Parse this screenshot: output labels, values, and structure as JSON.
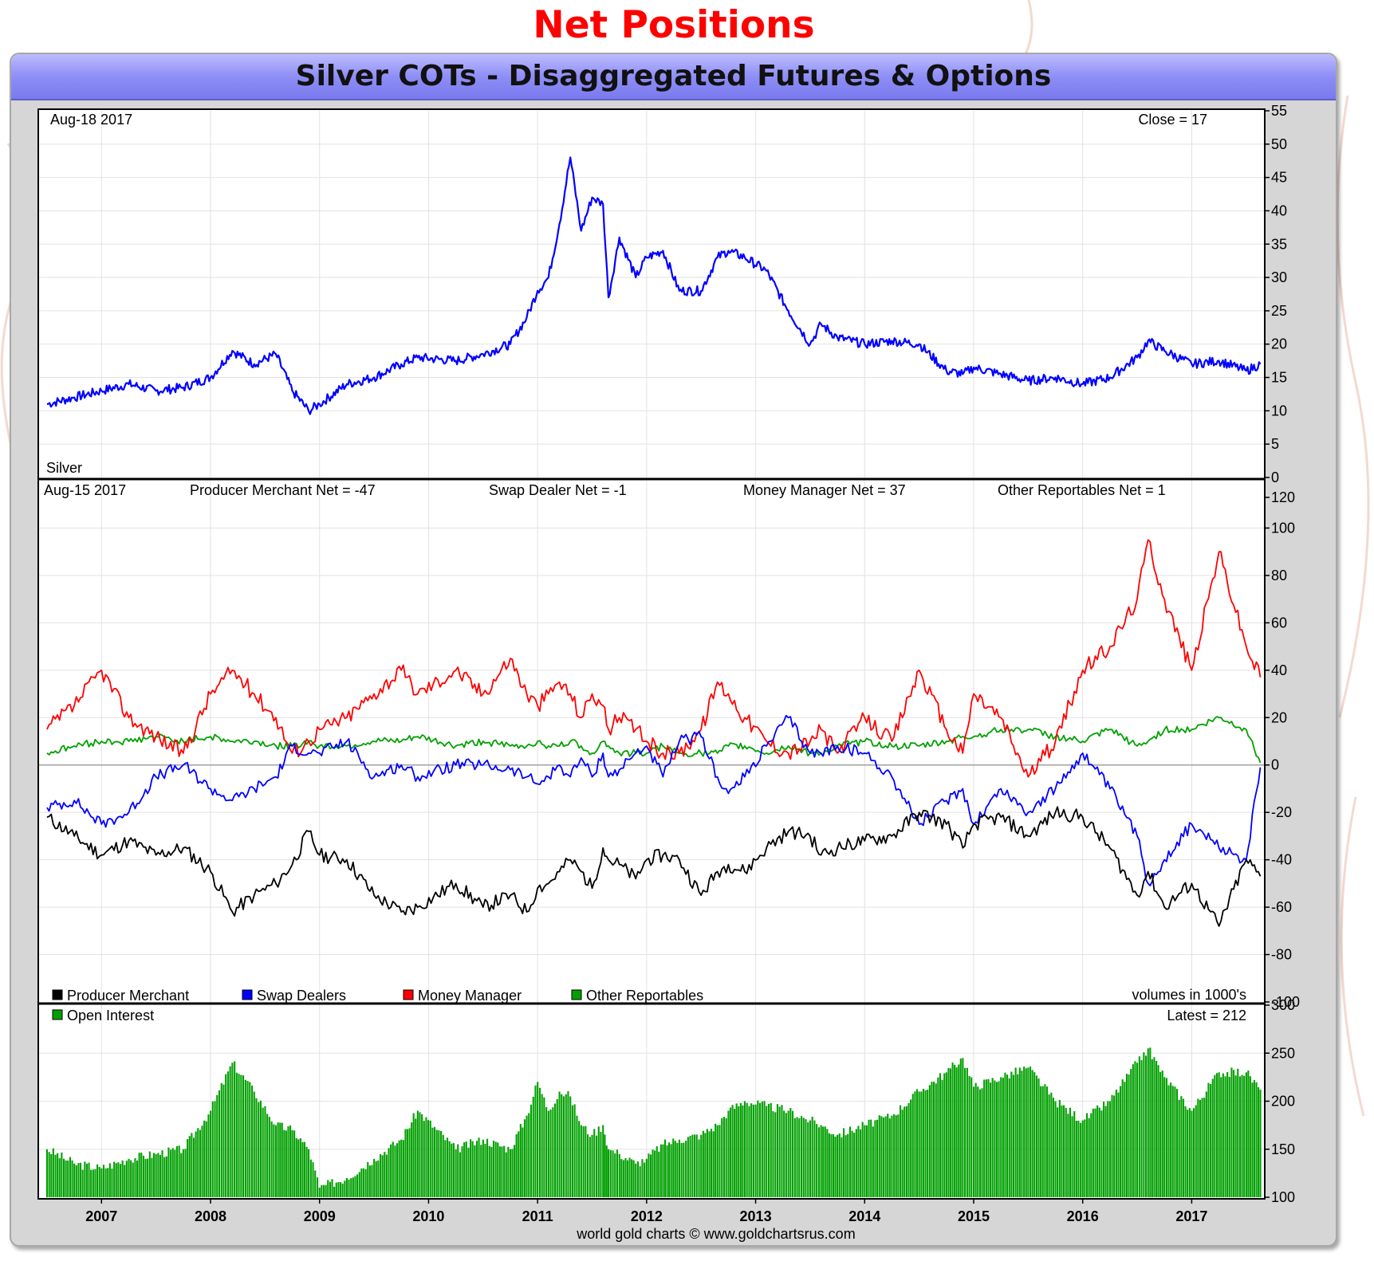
{
  "page": {
    "heading": "Net Positions",
    "title": "Silver COTs - Disaggregated Futures & Options",
    "credit": "world gold charts © www.goldchartsrus.com"
  },
  "colors": {
    "heading": "#ff0000",
    "title_bar": "#8e8ef6",
    "silver": "#0000ff",
    "producer_merchant": "#000000",
    "swap_dealers": "#0000ff",
    "money_manager": "#ff0000",
    "other_reportables": "#00a000",
    "open_interest": "#00a000"
  },
  "chart_data": [
    {
      "type": "line",
      "date_label": "Aug-18 2017",
      "close_label": "Close = 17",
      "series_label": "Silver",
      "yticks": [
        "55",
        "50",
        "45",
        "40",
        "35",
        "30",
        "25",
        "20",
        "15",
        "10",
        "5",
        "0"
      ],
      "ylim": [
        0,
        55
      ],
      "x": [
        2006.5,
        2006.75,
        2007.0,
        2007.25,
        2007.5,
        2007.75,
        2008.0,
        2008.2,
        2008.4,
        2008.6,
        2008.75,
        2008.9,
        2009.0,
        2009.25,
        2009.5,
        2009.75,
        2009.9,
        2010.25,
        2010.5,
        2010.75,
        2010.9,
        2011.0,
        2011.1,
        2011.2,
        2011.3,
        2011.4,
        2011.5,
        2011.6,
        2011.65,
        2011.75,
        2011.9,
        2012.0,
        2012.15,
        2012.3,
        2012.5,
        2012.65,
        2012.75,
        2012.9,
        2013.1,
        2013.3,
        2013.5,
        2013.6,
        2013.75,
        2014.0,
        2014.25,
        2014.5,
        2014.75,
        2014.9,
        2015.0,
        2015.25,
        2015.5,
        2015.75,
        2016.0,
        2016.25,
        2016.5,
        2016.6,
        2016.75,
        2017.0,
        2017.25,
        2017.5,
        2017.63
      ],
      "values": [
        11,
        12,
        13,
        14,
        13,
        13.5,
        15,
        19,
        17,
        18.5,
        13,
        10,
        11,
        14,
        15,
        17,
        18,
        17.5,
        18.5,
        20,
        24,
        28,
        30,
        38,
        48,
        37,
        42,
        41,
        27,
        36,
        30,
        33,
        34,
        28,
        28,
        33,
        34,
        33,
        31,
        25,
        20,
        23,
        21,
        20,
        20.5,
        20,
        16,
        15.5,
        16.5,
        15.5,
        14.5,
        15,
        14,
        15,
        18,
        20.5,
        19,
        17,
        17.5,
        16,
        17
      ]
    },
    {
      "type": "line",
      "date_label": "Aug-15 2017",
      "readouts": [
        "Producer Merchant Net = -47",
        "Swap Dealer Net = -1",
        "Money Manager Net = 37",
        "Other Reportables Net = 1"
      ],
      "units_label": "volumes in 1000's",
      "yticks": [
        "120",
        "100",
        "80",
        "60",
        "40",
        "20",
        "0",
        "-20",
        "-40",
        "-60",
        "-80",
        "-100"
      ],
      "ylim": [
        -100,
        120
      ],
      "x": [
        2006.5,
        2006.75,
        2007.0,
        2007.25,
        2007.5,
        2007.75,
        2008.0,
        2008.2,
        2008.4,
        2008.6,
        2008.75,
        2008.9,
        2009.0,
        2009.25,
        2009.5,
        2009.75,
        2009.9,
        2010.25,
        2010.5,
        2010.75,
        2010.9,
        2011.0,
        2011.1,
        2011.2,
        2011.3,
        2011.4,
        2011.5,
        2011.6,
        2011.65,
        2011.75,
        2011.9,
        2012.0,
        2012.15,
        2012.3,
        2012.5,
        2012.65,
        2012.75,
        2012.9,
        2013.1,
        2013.3,
        2013.5,
        2013.6,
        2013.75,
        2014.0,
        2014.25,
        2014.5,
        2014.75,
        2014.9,
        2015.0,
        2015.25,
        2015.5,
        2015.75,
        2016.0,
        2016.25,
        2016.5,
        2016.6,
        2016.75,
        2017.0,
        2017.25,
        2017.5,
        2017.63
      ],
      "series": [
        {
          "name": "Producer Merchant",
          "values": [
            -22,
            -30,
            -38,
            -32,
            -38,
            -35,
            -45,
            -62,
            -55,
            -50,
            -42,
            -28,
            -38,
            -40,
            -55,
            -62,
            -60,
            -50,
            -60,
            -55,
            -62,
            -52,
            -50,
            -45,
            -40,
            -45,
            -52,
            -35,
            -40,
            -42,
            -48,
            -40,
            -38,
            -40,
            -55,
            -45,
            -42,
            -45,
            -35,
            -28,
            -30,
            -38,
            -35,
            -32,
            -30,
            -20,
            -25,
            -35,
            -25,
            -22,
            -30,
            -20,
            -22,
            -35,
            -55,
            -45,
            -60,
            -50,
            -68,
            -40,
            -47
          ]
        },
        {
          "name": "Swap Dealers",
          "values": [
            -18,
            -15,
            -25,
            -20,
            -5,
            0,
            -10,
            -15,
            -10,
            -5,
            8,
            5,
            5,
            10,
            -5,
            0,
            -5,
            0,
            0,
            -2,
            -5,
            -8,
            -5,
            0,
            -5,
            3,
            -5,
            5,
            -5,
            -2,
            5,
            8,
            -5,
            10,
            12,
            -5,
            -12,
            -5,
            8,
            20,
            5,
            5,
            8,
            5,
            -5,
            -25,
            -15,
            -10,
            -25,
            -10,
            -20,
            -10,
            5,
            -10,
            -30,
            -50,
            -40,
            -25,
            -35,
            -40,
            -1
          ]
        },
        {
          "name": "Money Manager",
          "values": [
            15,
            25,
            40,
            20,
            12,
            5,
            30,
            40,
            30,
            20,
            5,
            10,
            15,
            20,
            30,
            40,
            30,
            40,
            30,
            45,
            30,
            25,
            30,
            35,
            30,
            20,
            30,
            25,
            15,
            20,
            15,
            10,
            5,
            5,
            15,
            35,
            30,
            20,
            10,
            5,
            10,
            15,
            5,
            20,
            10,
            40,
            15,
            5,
            30,
            20,
            -5,
            10,
            40,
            50,
            70,
            95,
            70,
            40,
            90,
            50,
            37
          ]
        },
        {
          "name": "Other Reportables",
          "values": [
            5,
            8,
            10,
            10,
            12,
            10,
            12,
            10,
            10,
            8,
            8,
            10,
            8,
            8,
            10,
            10,
            12,
            8,
            10,
            8,
            8,
            10,
            8,
            8,
            10,
            8,
            5,
            10,
            8,
            5,
            5,
            5,
            8,
            5,
            5,
            5,
            8,
            8,
            5,
            8,
            5,
            5,
            8,
            10,
            8,
            8,
            10,
            12,
            12,
            15,
            15,
            12,
            10,
            15,
            8,
            10,
            15,
            15,
            20,
            15,
            1
          ]
        }
      ]
    },
    {
      "type": "bar",
      "series_label": "Open Interest",
      "latest_label": "Latest = 212",
      "xticks": [
        "2007",
        "2008",
        "2009",
        "2010",
        "2011",
        "2012",
        "2013",
        "2014",
        "2015",
        "2016",
        "2017"
      ],
      "yticks": [
        "300",
        "250",
        "200",
        "150",
        "100"
      ],
      "ylim": [
        100,
        300
      ],
      "x": [
        2006.5,
        2006.75,
        2007.0,
        2007.25,
        2007.5,
        2007.75,
        2008.0,
        2008.2,
        2008.4,
        2008.6,
        2008.75,
        2008.9,
        2009.0,
        2009.25,
        2009.5,
        2009.75,
        2009.9,
        2010.25,
        2010.5,
        2010.75,
        2010.9,
        2011.0,
        2011.1,
        2011.2,
        2011.3,
        2011.4,
        2011.5,
        2011.6,
        2011.65,
        2011.75,
        2011.9,
        2012.0,
        2012.15,
        2012.3,
        2012.5,
        2012.65,
        2012.75,
        2012.9,
        2013.1,
        2013.3,
        2013.5,
        2013.6,
        2013.75,
        2014.0,
        2014.25,
        2014.5,
        2014.75,
        2014.9,
        2015.0,
        2015.25,
        2015.5,
        2015.75,
        2016.0,
        2016.25,
        2016.5,
        2016.6,
        2016.75,
        2017.0,
        2017.25,
        2017.5,
        2017.63
      ],
      "values": [
        150,
        135,
        130,
        140,
        145,
        150,
        190,
        240,
        210,
        175,
        170,
        150,
        110,
        120,
        140,
        160,
        190,
        150,
        160,
        150,
        185,
        220,
        190,
        210,
        205,
        175,
        165,
        175,
        150,
        145,
        135,
        140,
        155,
        160,
        165,
        175,
        190,
        200,
        195,
        190,
        180,
        175,
        165,
        175,
        185,
        210,
        230,
        245,
        215,
        225,
        235,
        200,
        180,
        200,
        240,
        255,
        225,
        190,
        230,
        230,
        212
      ]
    }
  ],
  "legend": {
    "items": [
      {
        "label": "Producer Merchant"
      },
      {
        "label": "Swap Dealers"
      },
      {
        "label": "Money Manager"
      },
      {
        "label": "Other Reportables"
      }
    ],
    "open_interest": "Open Interest"
  }
}
